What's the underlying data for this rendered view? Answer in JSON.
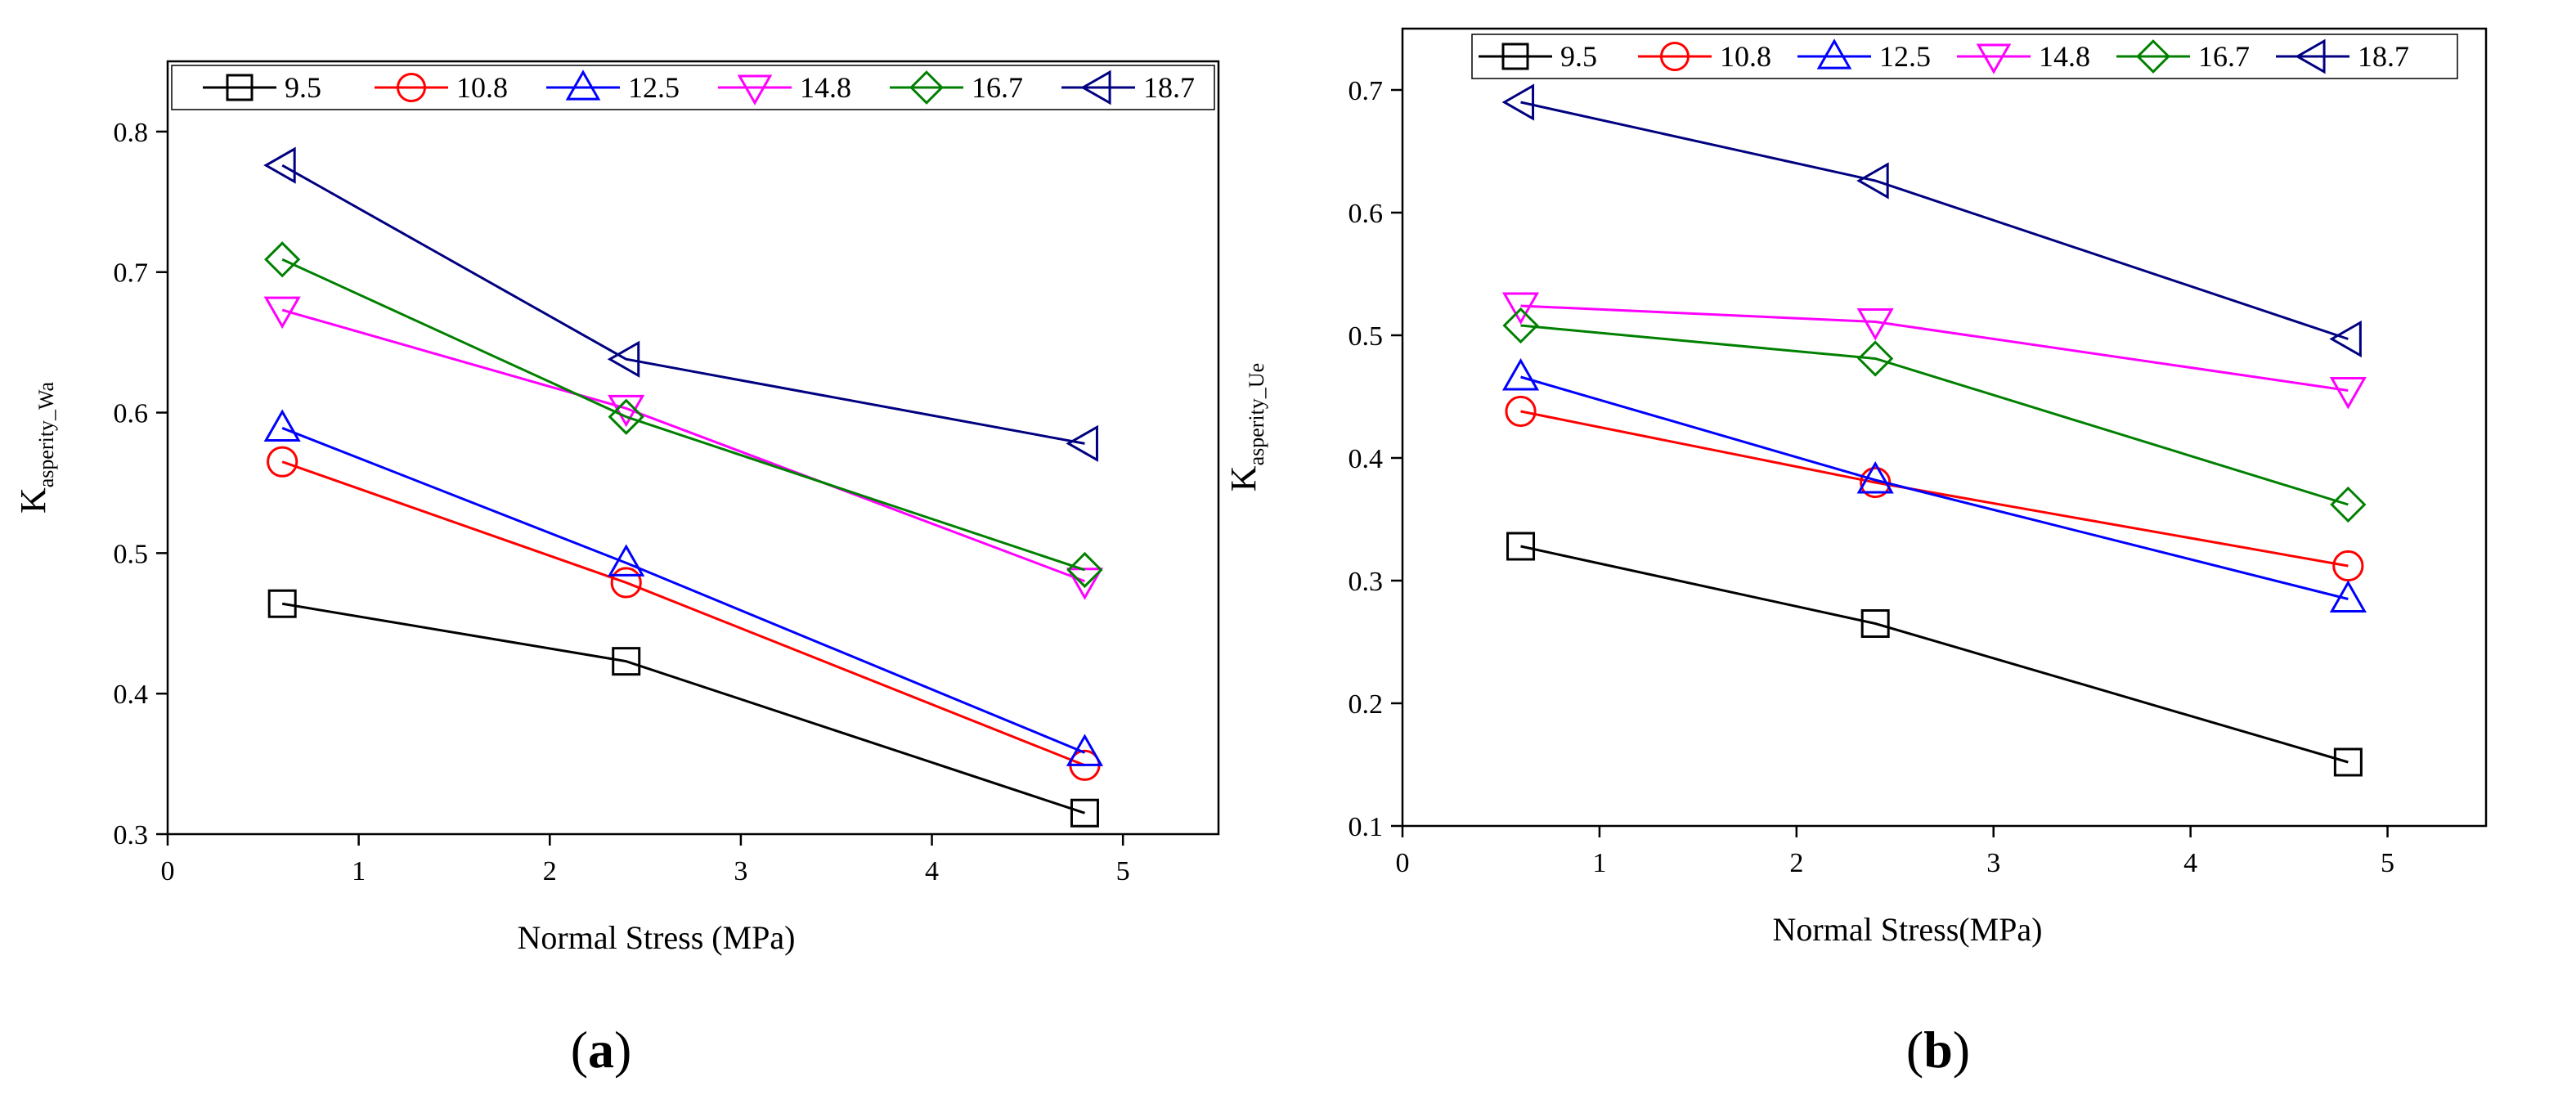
{
  "chart_data": [
    {
      "type": "line",
      "panel": "a",
      "caption": "a",
      "xlabel": "Normal Stress (MPa)",
      "ylabel_main": "K",
      "ylabel_sub": "asperity_Wa",
      "xlim": [
        0,
        5.5
      ],
      "ylim": [
        0.3,
        0.85
      ],
      "xticks": [
        0,
        1,
        2,
        3,
        4,
        5
      ],
      "yticks": [
        0.3,
        0.4,
        0.5,
        0.6,
        0.7,
        0.8
      ],
      "xtick_labels": [
        "0",
        "1",
        "2",
        "3",
        "4",
        "5"
      ],
      "ytick_labels": [
        "0.3",
        "0.4",
        "0.5",
        "0.6",
        "0.7",
        "0.8"
      ],
      "x": [
        0.6,
        2.4,
        4.8
      ],
      "legend_position": "top",
      "series": [
        {
          "name": "9.5",
          "color": "#000000",
          "marker": "square",
          "values": [
            0.464,
            0.423,
            0.315
          ]
        },
        {
          "name": "10.8",
          "color": "#ff0000",
          "marker": "circle",
          "values": [
            0.565,
            0.479,
            0.349
          ]
        },
        {
          "name": "12.5",
          "color": "#0000ff",
          "marker": "triangle-up",
          "values": [
            0.589,
            0.493,
            0.358
          ]
        },
        {
          "name": "14.8",
          "color": "#ff00ff",
          "marker": "triangle-down",
          "values": [
            0.673,
            0.603,
            0.48
          ]
        },
        {
          "name": "16.7",
          "color": "#008000",
          "marker": "diamond",
          "values": [
            0.709,
            0.597,
            0.488
          ]
        },
        {
          "name": "18.7",
          "color": "#000080",
          "marker": "triangle-left",
          "values": [
            0.776,
            0.638,
            0.578
          ]
        }
      ]
    },
    {
      "type": "line",
      "panel": "b",
      "caption": "b",
      "xlabel": "Normal Stress(MPa)",
      "ylabel_main": "K",
      "ylabel_sub": "asperity_Ue",
      "xlim": [
        0,
        5.5
      ],
      "ylim": [
        0.1,
        0.75
      ],
      "xticks": [
        0,
        1,
        2,
        3,
        4,
        5
      ],
      "yticks": [
        0.1,
        0.2,
        0.3,
        0.4,
        0.5,
        0.6,
        0.7
      ],
      "xtick_labels": [
        "0",
        "1",
        "2",
        "3",
        "4",
        "5"
      ],
      "ytick_labels": [
        "0.1",
        "0.2",
        "0.3",
        "0.4",
        "0.5",
        "0.6",
        "0.7"
      ],
      "x": [
        0.6,
        2.4,
        4.8
      ],
      "legend_position": "top",
      "series": [
        {
          "name": "9.5",
          "color": "#000000",
          "marker": "square",
          "values": [
            0.328,
            0.265,
            0.152
          ]
        },
        {
          "name": "10.8",
          "color": "#ff0000",
          "marker": "circle",
          "values": [
            0.438,
            0.38,
            0.312
          ]
        },
        {
          "name": "12.5",
          "color": "#0000ff",
          "marker": "triangle-up",
          "values": [
            0.466,
            0.382,
            0.285
          ]
        },
        {
          "name": "14.8",
          "color": "#ff00ff",
          "marker": "triangle-down",
          "values": [
            0.524,
            0.511,
            0.455
          ]
        },
        {
          "name": "16.7",
          "color": "#008000",
          "marker": "diamond",
          "values": [
            0.508,
            0.481,
            0.362
          ]
        },
        {
          "name": "18.7",
          "color": "#000080",
          "marker": "triangle-left",
          "values": [
            0.69,
            0.626,
            0.497
          ]
        }
      ]
    }
  ]
}
